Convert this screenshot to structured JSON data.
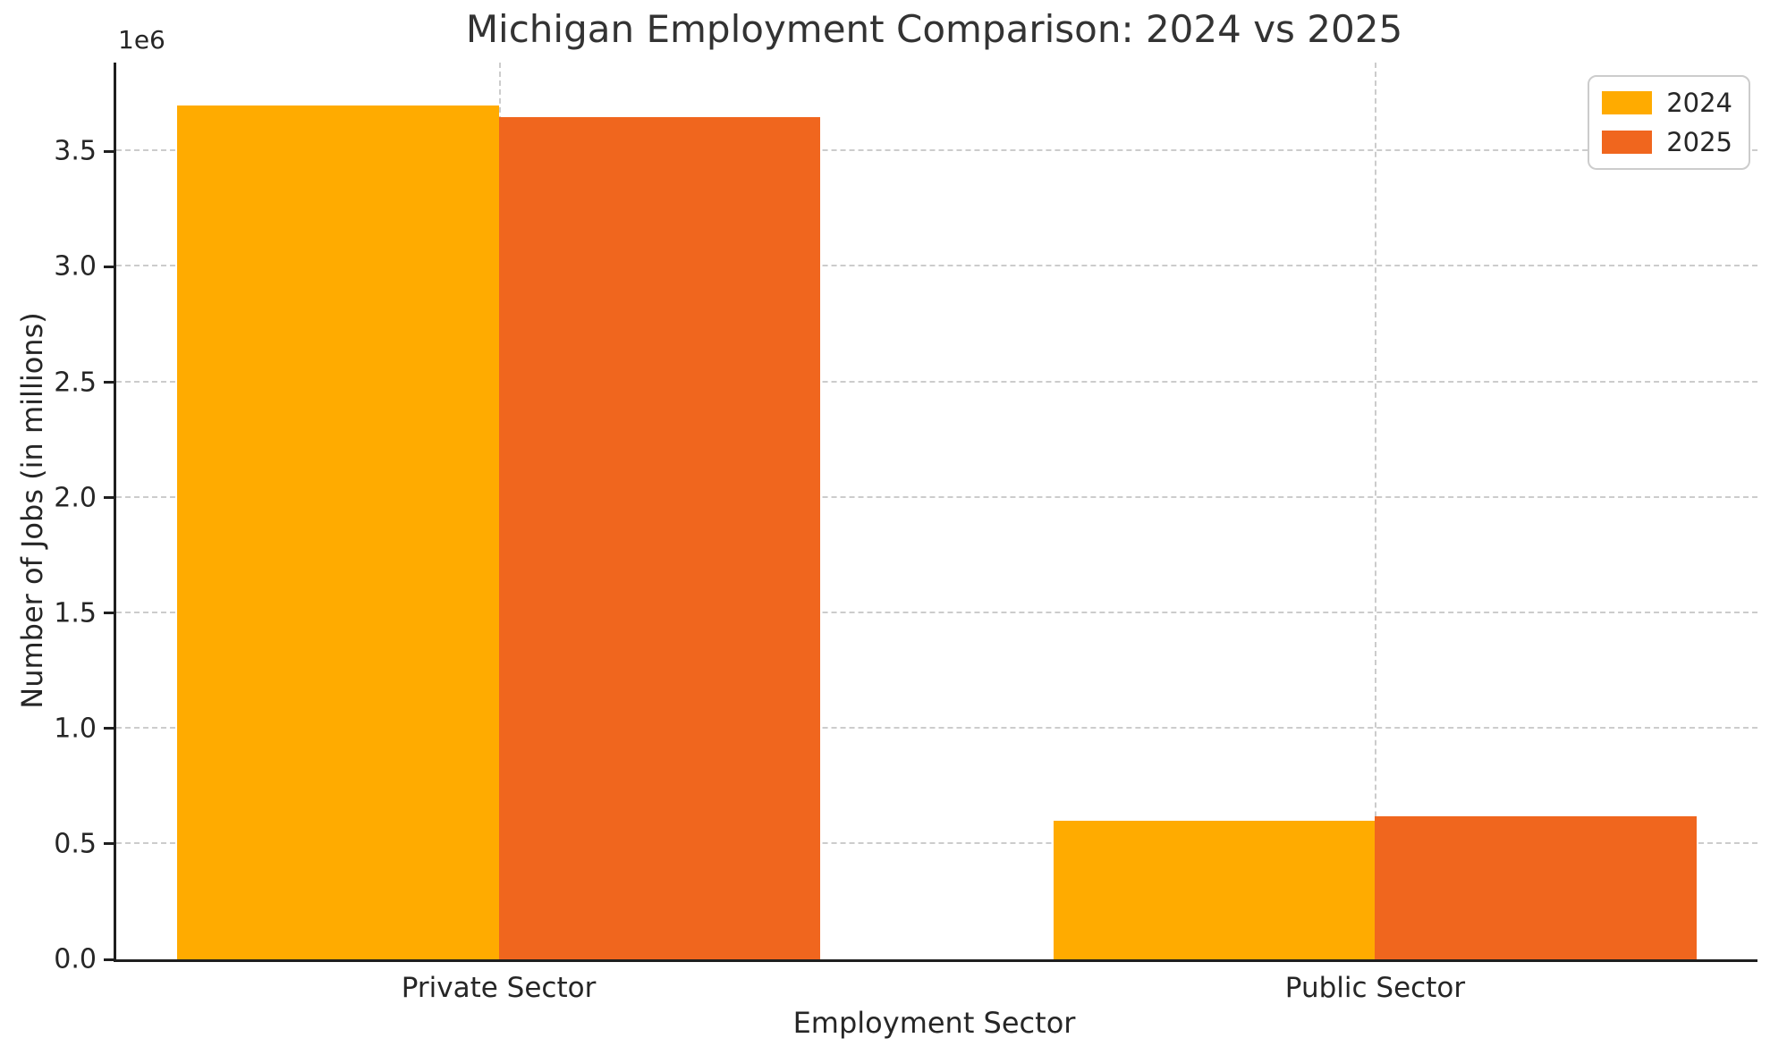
{
  "chart_data": {
    "type": "bar",
    "title": "Michigan Employment Comparison: 2024 vs 2025",
    "xlabel": "Employment Sector",
    "ylabel": "Number of Jobs (in millions)",
    "offset_text": "1e6",
    "categories": [
      "Private Sector",
      "Public Sector"
    ],
    "series": [
      {
        "name": "2024",
        "color": "#FFAB00",
        "values": [
          3700000,
          600000
        ]
      },
      {
        "name": "2025",
        "color": "#F0661E",
        "values": [
          3650000,
          620000
        ]
      }
    ],
    "ylim": [
      0,
      3885000
    ],
    "yticks": [
      {
        "value": 0,
        "label": "0.0"
      },
      {
        "value": 500000,
        "label": "0.5"
      },
      {
        "value": 1000000,
        "label": "1.0"
      },
      {
        "value": 1500000,
        "label": "1.5"
      },
      {
        "value": 2000000,
        "label": "2.0"
      },
      {
        "value": 2500000,
        "label": "2.5"
      },
      {
        "value": 3000000,
        "label": "3.0"
      },
      {
        "value": 3500000,
        "label": "3.5"
      }
    ],
    "grid": true,
    "grid_style": "dashed",
    "legend_position": "upper right"
  }
}
